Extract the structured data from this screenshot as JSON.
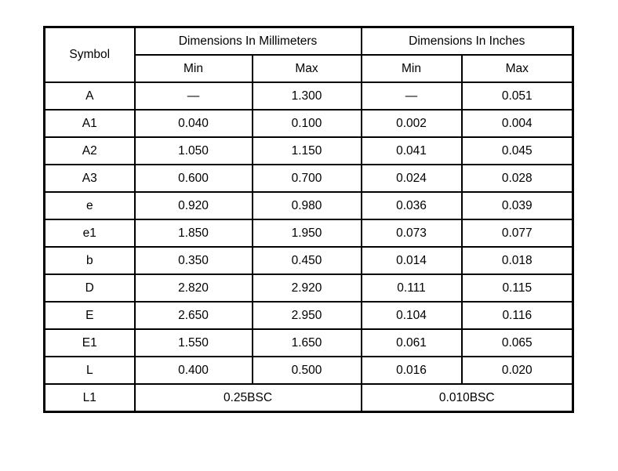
{
  "table": {
    "header": {
      "symbol": "Symbol",
      "mm_group": "Dimensions In Millimeters",
      "in_group": "Dimensions In Inches",
      "mm_min": "Min",
      "mm_max": "Max",
      "in_min": "Min",
      "in_max": "Max"
    },
    "rows": [
      {
        "symbol": "A",
        "mm_min": "—",
        "mm_max": "1.300",
        "in_min": "—",
        "in_max": "0.051"
      },
      {
        "symbol": "A1",
        "mm_min": "0.040",
        "mm_max": "0.100",
        "in_min": "0.002",
        "in_max": "0.004"
      },
      {
        "symbol": "A2",
        "mm_min": "1.050",
        "mm_max": "1.150",
        "in_min": "0.041",
        "in_max": "0.045"
      },
      {
        "symbol": "A3",
        "mm_min": "0.600",
        "mm_max": "0.700",
        "in_min": "0.024",
        "in_max": "0.028"
      },
      {
        "symbol": "e",
        "mm_min": "0.920",
        "mm_max": "0.980",
        "in_min": "0.036",
        "in_max": "0.039"
      },
      {
        "symbol": "e1",
        "mm_min": "1.850",
        "mm_max": "1.950",
        "in_min": "0.073",
        "in_max": "0.077"
      },
      {
        "symbol": "b",
        "mm_min": "0.350",
        "mm_max": "0.450",
        "in_min": "0.014",
        "in_max": "0.018"
      },
      {
        "symbol": "D",
        "mm_min": "2.820",
        "mm_max": "2.920",
        "in_min": "0.111",
        "in_max": "0.115"
      },
      {
        "symbol": "E",
        "mm_min": "2.650",
        "mm_max": "2.950",
        "in_min": "0.104",
        "in_max": "0.116"
      },
      {
        "symbol": "E1",
        "mm_min": "1.550",
        "mm_max": "1.650",
        "in_min": "0.061",
        "in_max": "0.065"
      },
      {
        "symbol": "L",
        "mm_min": "0.400",
        "mm_max": "0.500",
        "in_min": "0.016",
        "in_max": "0.020"
      }
    ],
    "span_row": {
      "symbol": "L1",
      "mm_value": "0.25BSC",
      "in_value": "0.010BSC"
    },
    "colors": {
      "border": "#000000",
      "text": "#000000",
      "background": "#ffffff"
    }
  }
}
